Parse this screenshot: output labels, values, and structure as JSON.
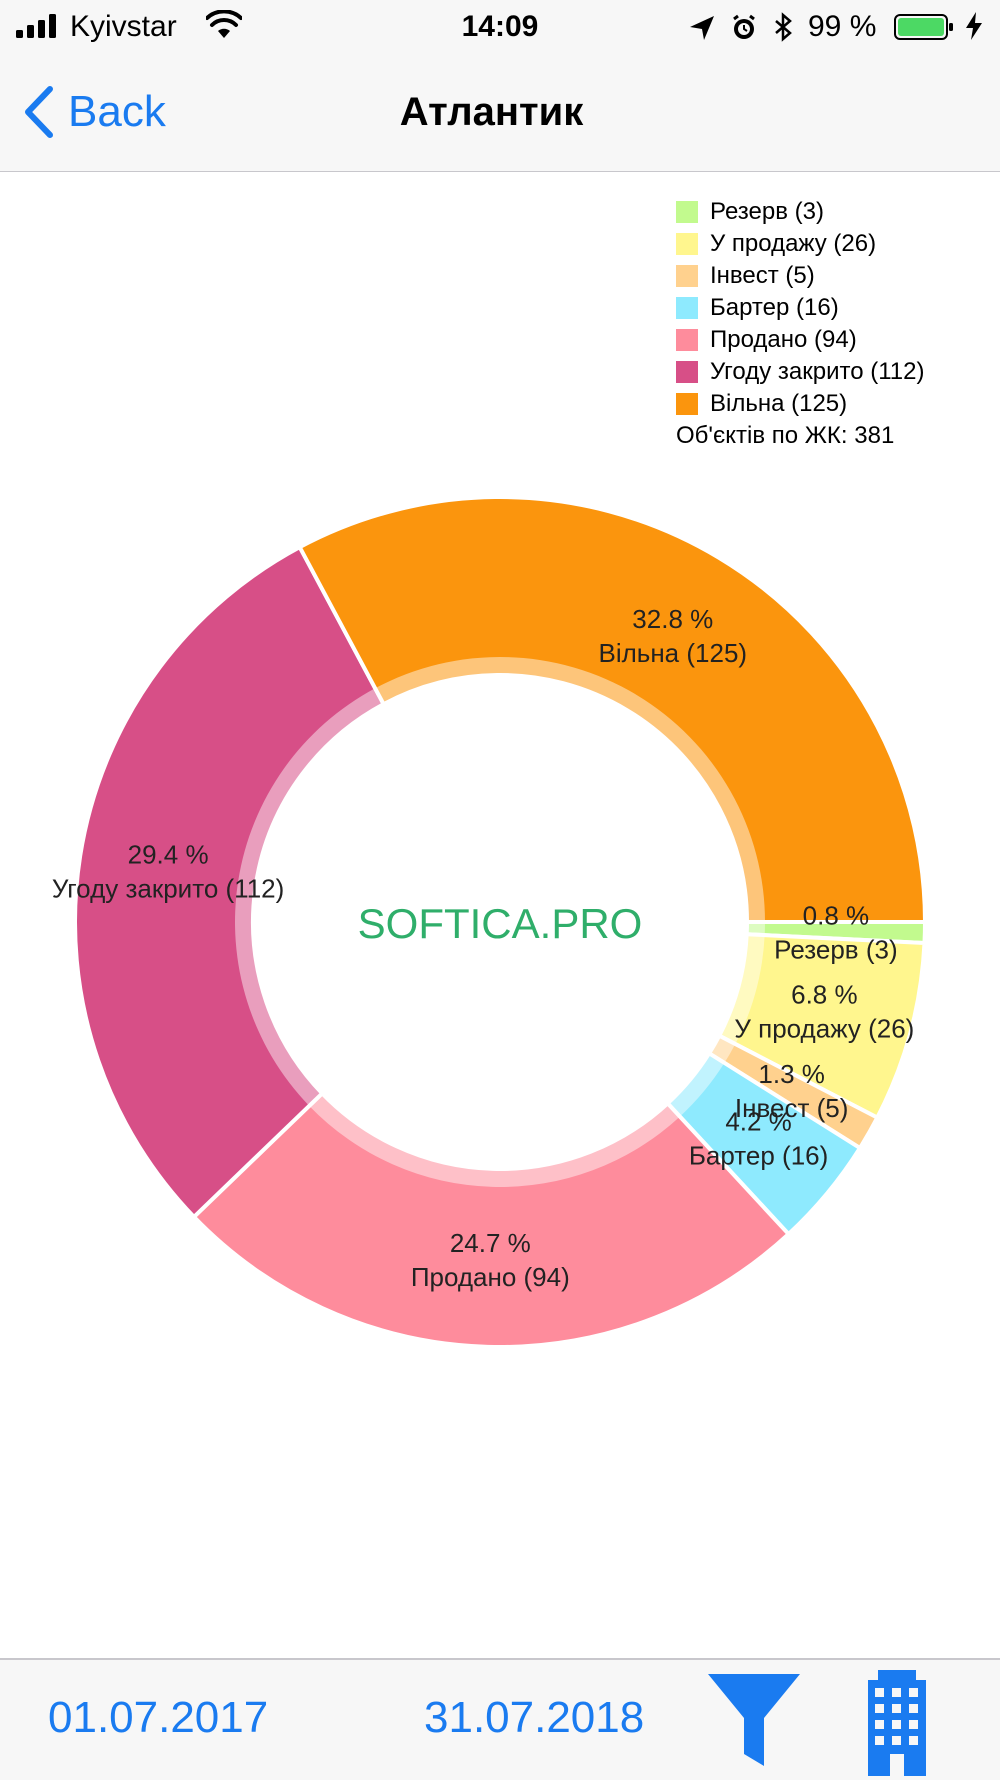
{
  "status_bar": {
    "carrier": "Kyivstar",
    "time": "14:09",
    "battery_percent": "99 %",
    "icons": [
      "signal-icon",
      "wifi-icon",
      "location-arrow-icon",
      "alarm-icon",
      "bluetooth-icon",
      "battery-icon",
      "charging-icon"
    ]
  },
  "nav": {
    "back_label": "Back",
    "title": "Атлантик"
  },
  "colors": {
    "accent": "#1a7bf0",
    "watermark": "#2fae6a"
  },
  "watermark": "SOFTICA.PRO",
  "legend": {
    "items": [
      {
        "label": "Резерв (3)",
        "color": "#c2fa8e"
      },
      {
        "label": "У продажу (26)",
        "color": "#fff68e"
      },
      {
        "label": "Інвест (5)",
        "color": "#ffd18e"
      },
      {
        "label": "Бартер (16)",
        "color": "#8eeafe"
      },
      {
        "label": "Продано (94)",
        "color": "#fe8c9c"
      },
      {
        "label": "Угоду закрито (112)",
        "color": "#d74f87"
      },
      {
        "label": "Вільна (125)",
        "color": "#fb950d"
      }
    ],
    "total_label": "Об'єктів по ЖК: 381"
  },
  "chart_data": {
    "type": "pie",
    "donut": true,
    "categories": [
      "Резерв",
      "У продажу",
      "Інвест",
      "Бартер",
      "Продано",
      "Угоду закрито",
      "Вільна"
    ],
    "values": [
      3,
      26,
      5,
      16,
      94,
      112,
      125
    ],
    "percent_labels": [
      "0.8 %",
      "6.8 %",
      "1.3 %",
      "4.2 %",
      "24.7 %",
      "29.4 %",
      "32.8 %"
    ],
    "name_labels": [
      "Резерв (3)",
      "У продажу (26)",
      "Інвест (5)",
      "Бартер (16)",
      "Продано (94)",
      "Угоду закрито (112)",
      "Вільна (125)"
    ],
    "colors": [
      "#c2fa8e",
      "#fff68e",
      "#ffd18e",
      "#8eeafe",
      "#fe8c9c",
      "#d74f87",
      "#fb950d"
    ],
    "start_angle_degrees": 0,
    "direction": "clockwise",
    "legend_position": "top-right"
  },
  "toolbar": {
    "date_from": "01.07.2017",
    "date_to": "31.07.2018",
    "icons": [
      "filter-icon",
      "building-icon"
    ]
  }
}
